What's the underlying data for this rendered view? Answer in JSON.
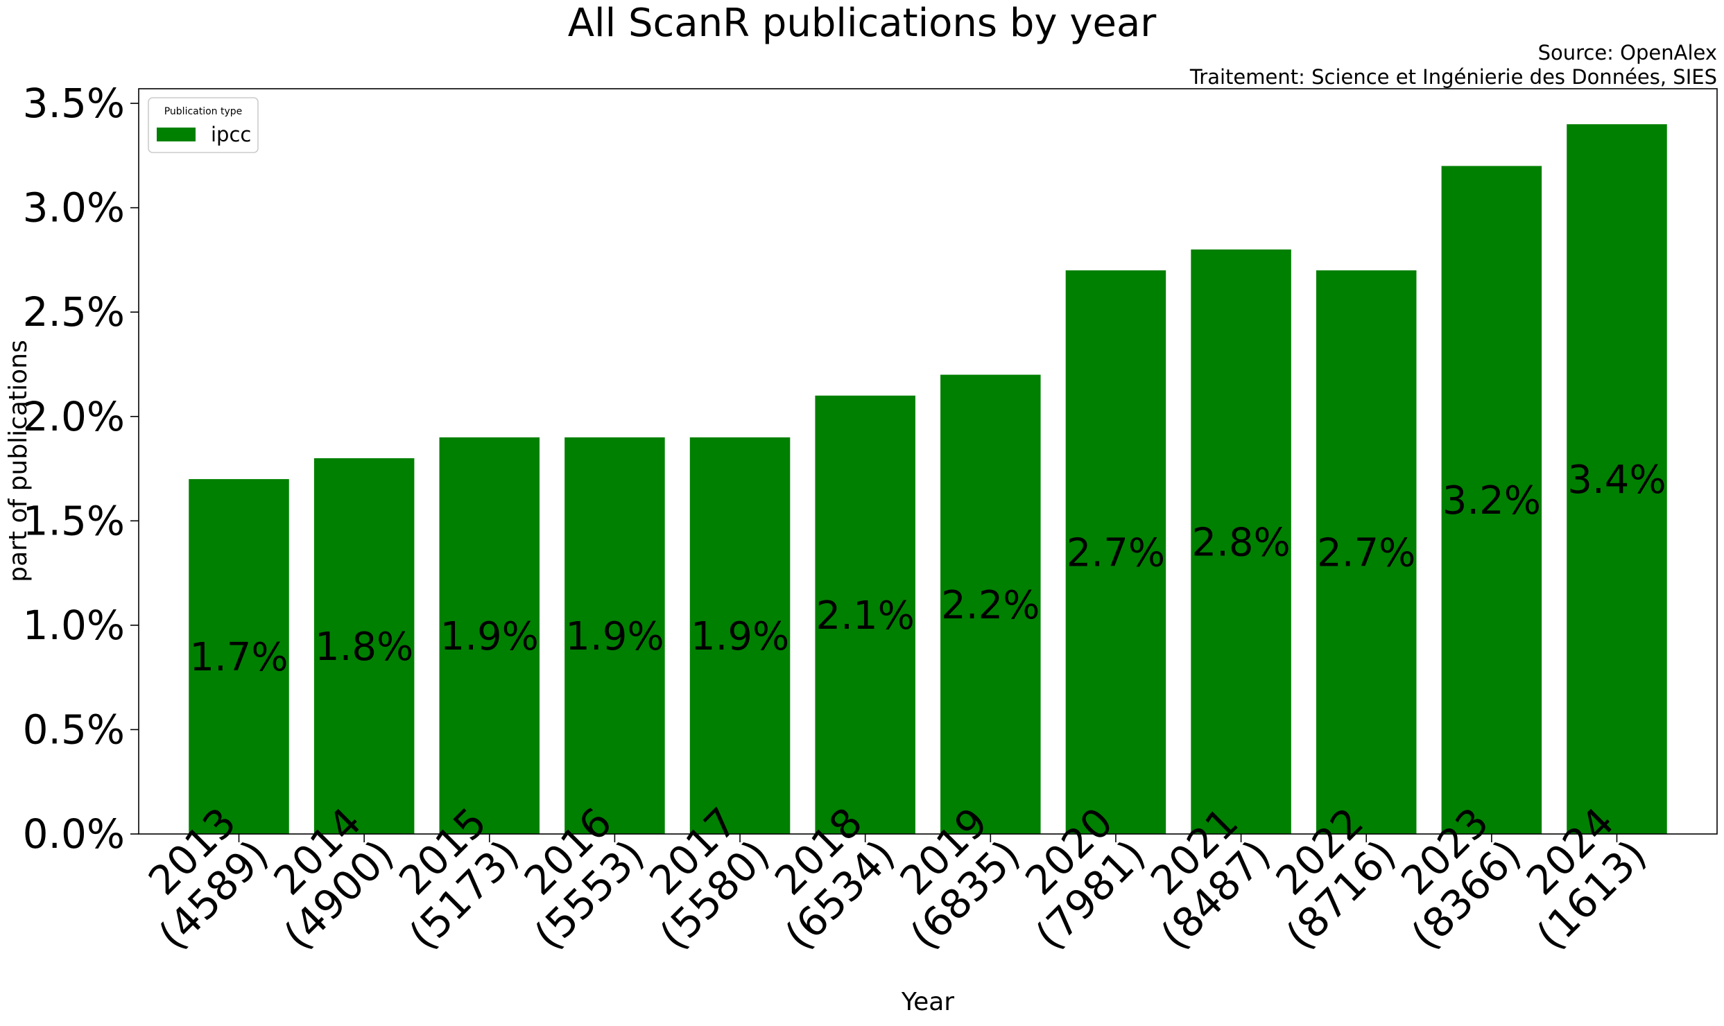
{
  "chart_data": {
    "type": "bar",
    "title": "All ScanR publications by year",
    "source_lines": [
      "Source: OpenAlex",
      "Traitement: Science et Ingénierie des Données, SIES"
    ],
    "xlabel": "Year",
    "ylabel": "part of publications",
    "categories": [
      "2013",
      "2014",
      "2015",
      "2016",
      "2017",
      "2018",
      "2019",
      "2020",
      "2021",
      "2022",
      "2023",
      "2024"
    ],
    "category_counts": [
      "(4589)",
      "(4900)",
      "(5173)",
      "(5553)",
      "(5580)",
      "(6534)",
      "(6835)",
      "(7981)",
      "(8487)",
      "(8716)",
      "(8366)",
      "(1613)"
    ],
    "series": [
      {
        "name": "ipcc",
        "color": "#008000",
        "values": [
          1.7,
          1.8,
          1.9,
          1.9,
          1.9,
          2.1,
          2.2,
          2.7,
          2.8,
          2.7,
          3.2,
          3.4
        ],
        "labels": [
          "1.7%",
          "1.8%",
          "1.9%",
          "1.9%",
          "1.9%",
          "2.1%",
          "2.2%",
          "2.7%",
          "2.8%",
          "2.7%",
          "3.2%",
          "3.4%"
        ]
      }
    ],
    "ylim": [
      0,
      3.57
    ],
    "yticks": [
      0,
      0.5,
      1.0,
      1.5,
      2.0,
      2.5,
      3.0,
      3.5
    ],
    "ytick_labels": [
      "0.0%",
      "0.5%",
      "1.0%",
      "1.5%",
      "2.0%",
      "2.5%",
      "3.0%",
      "3.5%"
    ],
    "legend": {
      "title": "Publication type",
      "placement": "top-left"
    },
    "grid": false
  }
}
